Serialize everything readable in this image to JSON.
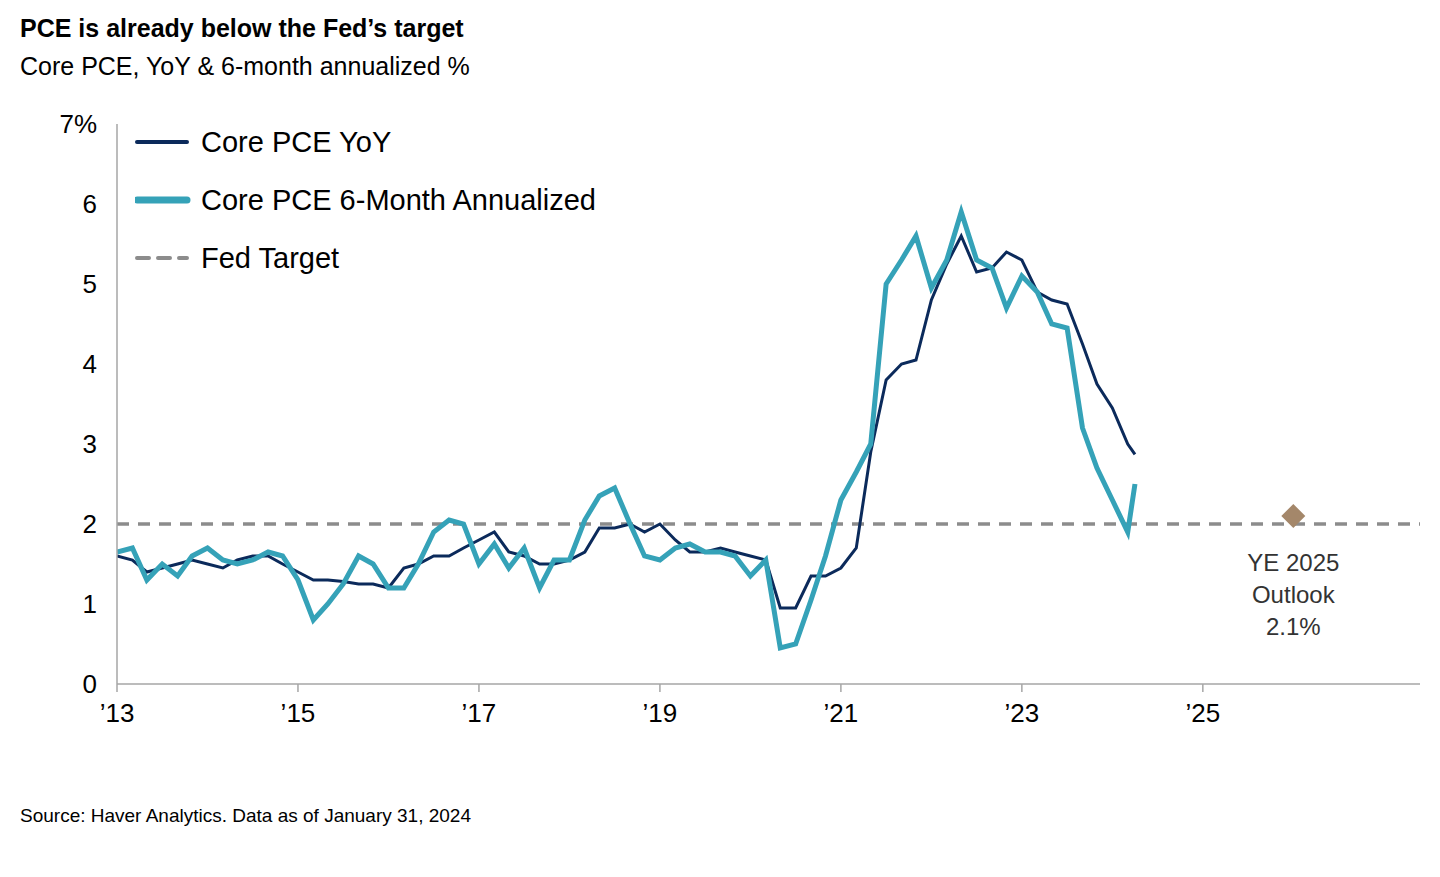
{
  "chart_data": {
    "type": "line",
    "title": "PCE is already below the Fed’s target",
    "subtitle": "Core PCE, YoY & 6-month annualized %",
    "source": "Source: Haver Analytics. Data as of January 31, 2024",
    "x": [
      2013,
      2013.17,
      2013.33,
      2013.5,
      2013.67,
      2013.83,
      2014,
      2014.17,
      2014.33,
      2014.5,
      2014.67,
      2014.83,
      2015,
      2015.17,
      2015.33,
      2015.5,
      2015.67,
      2015.83,
      2016,
      2016.17,
      2016.33,
      2016.5,
      2016.67,
      2016.83,
      2017,
      2017.17,
      2017.33,
      2017.5,
      2017.67,
      2017.83,
      2018,
      2018.17,
      2018.33,
      2018.5,
      2018.67,
      2018.83,
      2019,
      2019.17,
      2019.33,
      2019.5,
      2019.67,
      2019.83,
      2020,
      2020.17,
      2020.33,
      2020.5,
      2020.67,
      2020.83,
      2021,
      2021.17,
      2021.33,
      2021.5,
      2021.67,
      2021.83,
      2022,
      2022.17,
      2022.33,
      2022.5,
      2022.67,
      2022.83,
      2023,
      2023.17,
      2023.33,
      2023.5,
      2023.67,
      2023.83,
      2024,
      2024.17,
      2024.25
    ],
    "series": [
      {
        "name": "Core PCE YoY",
        "color": "#0b2a5b",
        "values": [
          1.6,
          1.55,
          1.4,
          1.45,
          1.5,
          1.55,
          1.5,
          1.45,
          1.55,
          1.6,
          1.6,
          1.5,
          1.4,
          1.3,
          1.3,
          1.28,
          1.25,
          1.25,
          1.2,
          1.45,
          1.5,
          1.6,
          1.6,
          1.7,
          1.8,
          1.9,
          1.65,
          1.6,
          1.5,
          1.5,
          1.55,
          1.65,
          1.95,
          1.95,
          2.0,
          1.9,
          2.0,
          1.8,
          1.65,
          1.65,
          1.7,
          1.65,
          1.6,
          1.55,
          0.95,
          0.95,
          1.35,
          1.35,
          1.45,
          1.7,
          2.9,
          3.8,
          4.0,
          4.05,
          4.8,
          5.25,
          5.6,
          5.15,
          5.2,
          5.4,
          5.3,
          4.9,
          4.8,
          4.75,
          4.25,
          3.75,
          3.45,
          3.0,
          2.87
        ]
      },
      {
        "name": "Core PCE 6-Month Annualized",
        "color": "#35a2b8",
        "values": [
          1.65,
          1.7,
          1.3,
          1.5,
          1.35,
          1.6,
          1.7,
          1.55,
          1.5,
          1.55,
          1.65,
          1.6,
          1.3,
          0.8,
          1.0,
          1.25,
          1.6,
          1.5,
          1.2,
          1.2,
          1.5,
          1.9,
          2.05,
          2.0,
          1.5,
          1.75,
          1.45,
          1.7,
          1.2,
          1.55,
          1.55,
          2.05,
          2.35,
          2.45,
          2.0,
          1.6,
          1.55,
          1.7,
          1.75,
          1.65,
          1.65,
          1.6,
          1.35,
          1.55,
          0.45,
          0.5,
          1.05,
          1.6,
          2.3,
          2.65,
          3.0,
          5.0,
          5.3,
          5.6,
          4.95,
          5.3,
          5.9,
          5.3,
          5.2,
          4.7,
          5.1,
          4.9,
          4.5,
          4.45,
          3.2,
          2.7,
          2.3,
          1.9,
          2.5
        ]
      }
    ],
    "target": {
      "name": "Fed Target",
      "value": 2,
      "color": "#8c8c8c",
      "line_style": "dashed"
    },
    "outlook": {
      "label_lines": [
        "YE 2025",
        "Outlook",
        "2.1%"
      ],
      "x": 2026,
      "value": 2.1,
      "color": "#a4876a",
      "marker": "diamond"
    },
    "xlim": [
      2013,
      2027.4
    ],
    "xticks": [
      {
        "value": 2013,
        "label": "’13"
      },
      {
        "value": 2015,
        "label": "’15"
      },
      {
        "value": 2017,
        "label": "’17"
      },
      {
        "value": 2019,
        "label": "’19"
      },
      {
        "value": 2021,
        "label": "’21"
      },
      {
        "value": 2023,
        "label": "’23"
      },
      {
        "value": 2025,
        "label": "’25"
      }
    ],
    "ylim": [
      0,
      7
    ],
    "yticks": [
      0,
      1,
      2,
      3,
      4,
      5,
      6,
      {
        "value": 7,
        "label": "7%"
      }
    ],
    "grid": false,
    "legend": "top-left"
  }
}
